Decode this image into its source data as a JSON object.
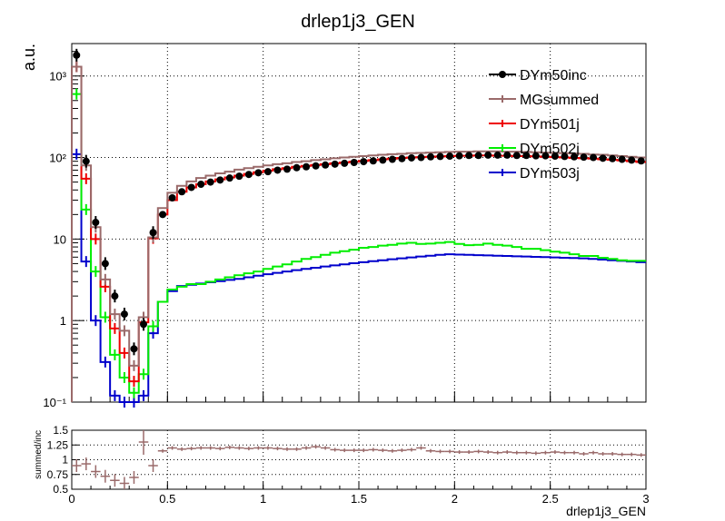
{
  "chart_data": [
    {
      "type": "line",
      "title": "drlep1j3_GEN",
      "ylabel": "a.u.",
      "xlabel": "",
      "yscale": "log",
      "xlim": [
        0,
        3
      ],
      "ylim": [
        0.1,
        2500
      ],
      "grid": true,
      "legend_position": "top-right",
      "ytick_labels": [
        "10⁻¹",
        "1",
        "10",
        "10²",
        "10³"
      ],
      "xtick_labels": [
        "0",
        "0.5",
        "1",
        "1.5",
        "2",
        "2.5",
        "3"
      ],
      "bin_width": 0.05,
      "series": [
        {
          "name": "DYm50inc",
          "color": "#000000",
          "style": "markers",
          "values": [
            1800,
            90,
            16,
            5,
            2,
            1.2,
            0.45,
            0.9,
            12,
            20,
            32,
            38,
            43,
            47,
            50,
            53,
            56,
            59,
            62,
            65,
            67,
            70,
            72,
            75,
            77,
            79,
            81,
            83,
            85,
            87,
            89,
            91,
            93,
            95,
            97,
            99,
            100,
            102,
            103,
            104,
            105,
            106,
            106,
            107,
            107,
            107,
            106,
            106,
            105,
            105,
            104,
            103,
            102,
            101,
            100,
            98,
            97,
            95,
            93,
            91
          ]
        },
        {
          "name": "MGsummed",
          "color": "#9a6a6a",
          "style": "step",
          "values": [
            1300,
            80,
            14,
            3.2,
            1.2,
            0.75,
            0.28,
            1.1,
            10.5,
            24,
            37,
            45,
            51,
            56,
            60,
            64,
            67,
            71,
            74,
            77,
            80,
            83,
            85,
            88,
            90,
            93,
            95,
            98,
            100,
            102,
            104,
            106,
            108,
            110,
            111,
            113,
            114,
            115,
            116,
            117,
            118,
            118,
            119,
            119,
            119,
            118,
            118,
            117,
            116,
            115,
            114,
            113,
            112,
            111,
            109,
            108,
            106,
            104,
            102,
            100
          ]
        },
        {
          "name": "DYm501j",
          "color": "#ee0000",
          "style": "step",
          "values": [
            1300,
            55,
            10,
            2.6,
            0.8,
            0.4,
            0.18,
            0.95,
            10.2,
            20,
            30,
            38,
            43,
            47,
            51,
            54,
            57,
            60,
            63,
            66,
            69,
            72,
            74,
            77,
            79,
            81,
            83,
            85,
            87,
            89,
            91,
            93,
            95,
            97,
            99,
            100,
            101,
            102,
            103,
            104,
            105,
            105,
            106,
            106,
            105,
            105,
            104,
            104,
            103,
            102,
            101,
            100,
            99,
            98,
            97,
            95,
            94,
            92,
            90,
            88
          ]
        },
        {
          "name": "DYm502j",
          "color": "#00ee00",
          "style": "step",
          "values": [
            600,
            23,
            4,
            1.1,
            0.38,
            0.2,
            0.13,
            0.22,
            0.85,
            1.7,
            2.4,
            2.6,
            2.8,
            2.8,
            3.0,
            3.2,
            3.4,
            3.6,
            3.8,
            4.0,
            4.3,
            4.6,
            4.9,
            5.3,
            5.7,
            6.0,
            6.4,
            6.8,
            7.1,
            7.4,
            7.8,
            8.0,
            8.3,
            8.5,
            8.8,
            9.0,
            8.7,
            8.8,
            9.0,
            9.2,
            8.7,
            8.4,
            8.5,
            8.8,
            8.5,
            8.3,
            8.0,
            7.6,
            7.6,
            7.3,
            7.0,
            6.8,
            6.5,
            6.2,
            6.2,
            5.9,
            5.7,
            5.5,
            5.4,
            5.4
          ]
        },
        {
          "name": "DYm503j",
          "color": "#0000cc",
          "style": "step",
          "values": [
            110,
            5.3,
            1.0,
            0.31,
            0.12,
            0.1,
            0.1,
            0.12,
            0.7,
            1.7,
            2.3,
            2.65,
            2.75,
            2.85,
            2.95,
            3.05,
            3.15,
            3.25,
            3.4,
            3.55,
            3.7,
            3.85,
            4.0,
            4.15,
            4.3,
            4.45,
            4.6,
            4.75,
            4.9,
            5.05,
            5.2,
            5.35,
            5.5,
            5.65,
            5.8,
            5.95,
            6.1,
            6.25,
            6.4,
            6.5,
            6.45,
            6.4,
            6.35,
            6.3,
            6.25,
            6.2,
            6.15,
            6.1,
            6.05,
            6.0,
            5.95,
            5.9,
            5.85,
            5.8,
            5.7,
            5.6,
            5.5,
            5.4,
            5.3,
            5.2
          ]
        }
      ]
    },
    {
      "type": "scatter",
      "xlabel": "drlep1j3_GEN",
      "ylabel": "summed/inc",
      "xlim": [
        0,
        3
      ],
      "ylim": [
        0.5,
        1.5
      ],
      "grid": true,
      "xtick_labels": [
        "0",
        "0.5",
        "1",
        "1.5",
        "2",
        "2.5",
        "3"
      ],
      "ytick_labels": [
        "0.5",
        "0.75",
        "1",
        "1.25",
        "1.5"
      ],
      "series": [
        {
          "name": "",
          "color": "#9a6a6a",
          "values": [
            0.9,
            0.93,
            0.8,
            0.72,
            0.65,
            0.6,
            0.7,
            1.3,
            0.9,
            1.15,
            1.2,
            1.18,
            1.19,
            1.2,
            1.2,
            1.19,
            1.21,
            1.2,
            1.19,
            1.2,
            1.2,
            1.19,
            1.18,
            1.18,
            1.2,
            1.22,
            1.2,
            1.17,
            1.16,
            1.16,
            1.16,
            1.17,
            1.16,
            1.15,
            1.16,
            1.17,
            1.2,
            1.15,
            1.14,
            1.14,
            1.13,
            1.13,
            1.14,
            1.13,
            1.12,
            1.13,
            1.12,
            1.12,
            1.11,
            1.12,
            1.13,
            1.12,
            1.12,
            1.1,
            1.12,
            1.1,
            1.1,
            1.09,
            1.09,
            1.08
          ]
        }
      ]
    }
  ]
}
